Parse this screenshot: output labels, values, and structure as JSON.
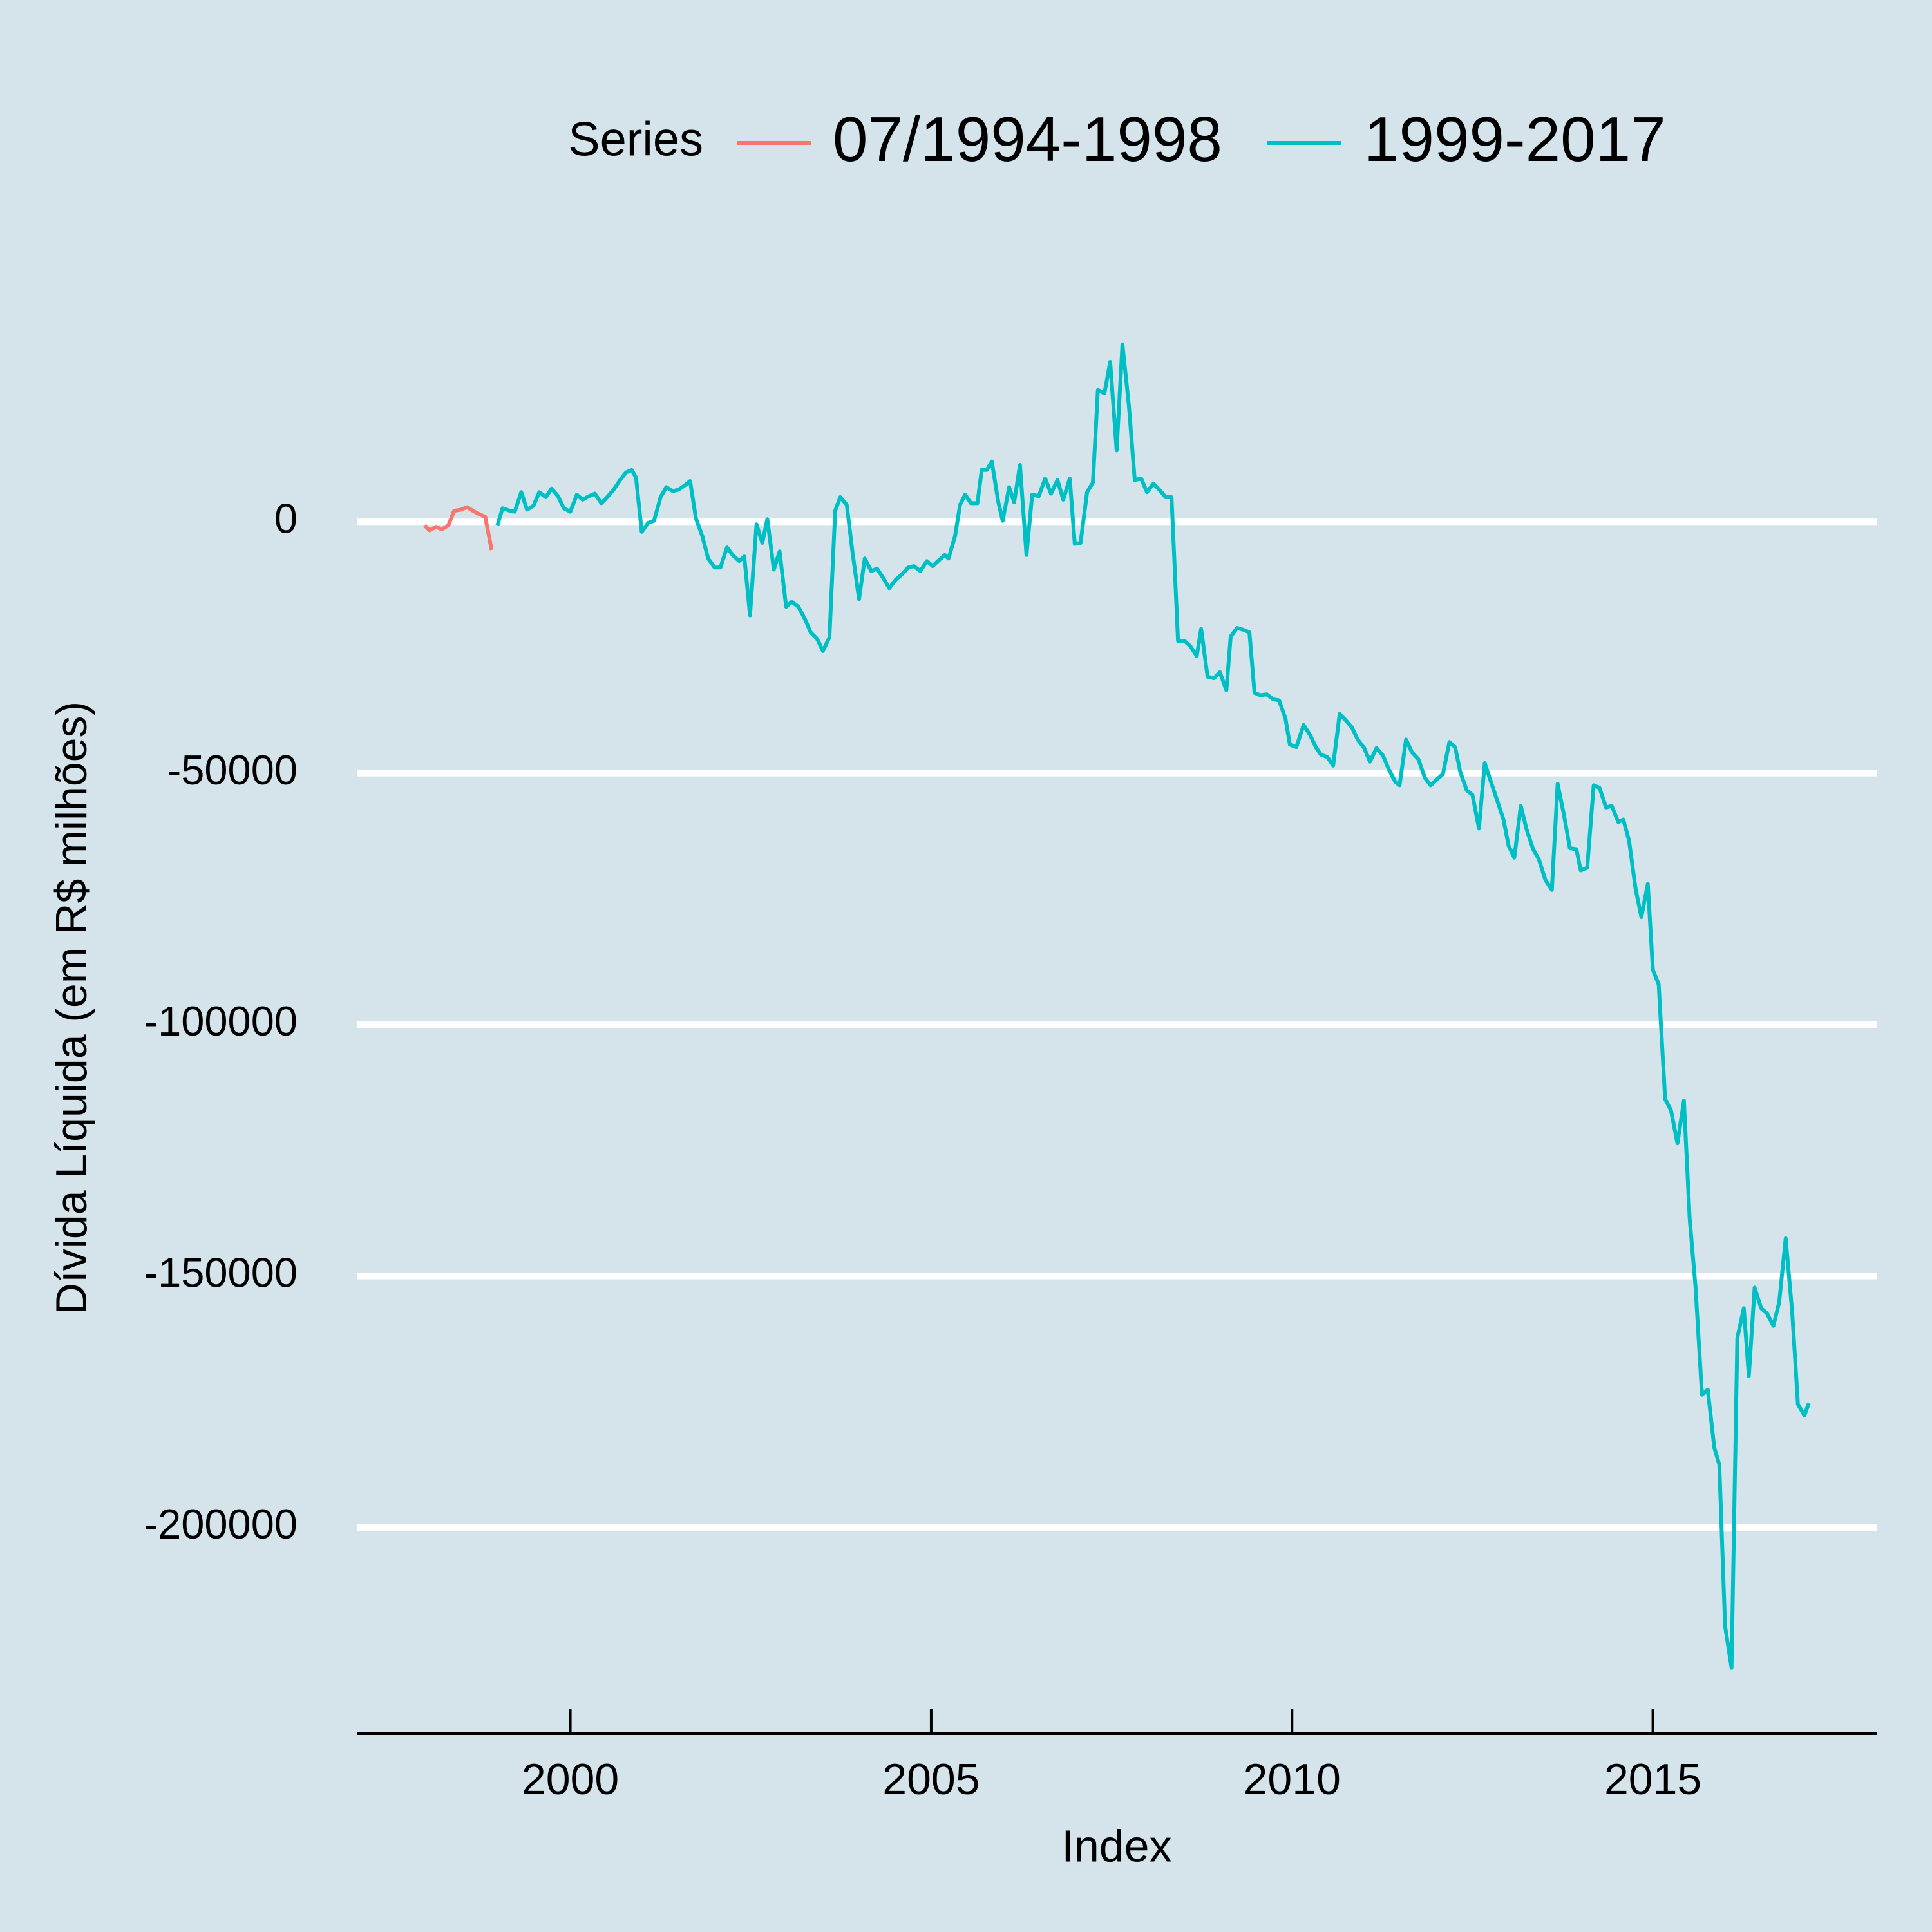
{
  "chart_data": {
    "type": "line",
    "ylabel": "Dívida Líquida (em R$ milhões)",
    "xlabel": "Index",
    "legend_title": "Series",
    "legend": "top",
    "grid": true,
    "xlim": [
      1997.05,
      2018.1
    ],
    "xticks": [
      2000,
      2005,
      2010,
      2015
    ],
    "ylim": [
      -241000,
      48700
    ],
    "yticks": [
      0,
      -50000,
      -100000,
      -150000,
      -200000
    ],
    "series": [
      {
        "name": "07/1994-1998",
        "color": "#f8766d",
        "x": [
          1997.98,
          1998.05,
          1998.14,
          1998.22,
          1998.31,
          1998.39,
          1998.48,
          1998.57,
          1998.65,
          1998.74,
          1998.82,
          1998.91
        ],
        "values": [
          -700,
          -1700,
          -1000,
          -1500,
          -700,
          2200,
          2400,
          2900,
          2200,
          1500,
          1000,
          -5600
        ]
      },
      {
        "name": "1999-2017",
        "color": "#00bfc4",
        "x": [
          1998.99,
          1999.06,
          1999.16,
          1999.23,
          1999.32,
          1999.4,
          1999.49,
          1999.57,
          1999.66,
          1999.74,
          1999.83,
          1999.91,
          2000.0,
          2000.09,
          2000.17,
          2000.26,
          2000.34,
          2000.43,
          2000.51,
          2000.6,
          2000.68,
          2000.77,
          2000.85,
          2000.91,
          2000.99,
          2001.08,
          2001.16,
          2001.25,
          2001.33,
          2001.42,
          2001.5,
          2001.59,
          2001.66,
          2001.74,
          2001.83,
          2001.91,
          2002.0,
          2002.08,
          2002.17,
          2002.25,
          2002.34,
          2002.41,
          2002.49,
          2002.58,
          2002.66,
          2002.73,
          2002.82,
          2002.9,
          2002.99,
          2003.07,
          2003.16,
          2003.25,
          2003.33,
          2003.42,
          2003.5,
          2003.59,
          2003.67,
          2003.74,
          2003.83,
          2003.91,
          2004.0,
          2004.08,
          2004.17,
          2004.25,
          2004.34,
          2004.42,
          2004.51,
          2004.59,
          2004.68,
          2004.76,
          2004.85,
          2004.94,
          2005.02,
          2005.11,
          2005.19,
          2005.24,
          2005.33,
          2005.4,
          2005.47,
          2005.55,
          2005.64,
          2005.7,
          2005.77,
          2005.84,
          2005.93,
          2005.99,
          2006.08,
          2006.15,
          2006.23,
          2006.32,
          2006.4,
          2006.49,
          2006.58,
          2006.66,
          2006.75,
          2006.83,
          2006.92,
          2006.99,
          2007.07,
          2007.16,
          2007.24,
          2007.31,
          2007.4,
          2007.48,
          2007.57,
          2007.65,
          2007.74,
          2007.82,
          2007.91,
          2007.99,
          2008.08,
          2008.16,
          2008.25,
          2008.33,
          2008.42,
          2008.51,
          2008.59,
          2008.68,
          2008.74,
          2008.83,
          2008.92,
          2009.0,
          2009.09,
          2009.15,
          2009.24,
          2009.33,
          2009.41,
          2009.48,
          2009.56,
          2009.65,
          2009.74,
          2009.82,
          2009.91,
          2009.97,
          2010.06,
          2010.16,
          2010.25,
          2010.33,
          2010.4,
          2010.49,
          2010.57,
          2010.66,
          2010.74,
          2010.83,
          2010.91,
          2011.0,
          2011.08,
          2011.17,
          2011.26,
          2011.34,
          2011.43,
          2011.49,
          2011.58,
          2011.66,
          2011.75,
          2011.84,
          2011.92,
          2012.01,
          2012.09,
          2012.18,
          2012.26,
          2012.33,
          2012.42,
          2012.5,
          2012.59,
          2012.67,
          2012.76,
          2012.84,
          2012.93,
          2013.0,
          2013.08,
          2013.17,
          2013.25,
          2013.34,
          2013.42,
          2013.51,
          2013.6,
          2013.68,
          2013.77,
          2013.85,
          2013.94,
          2014.0,
          2014.09,
          2014.18,
          2014.26,
          2014.35,
          2014.43,
          2014.52,
          2014.59,
          2014.67,
          2014.76,
          2014.84,
          2014.93,
          2015.0,
          2015.08,
          2015.17,
          2015.25,
          2015.34,
          2015.43,
          2015.51,
          2015.59,
          2015.68,
          2015.76,
          2015.85,
          2015.92,
          2016.0,
          2016.09,
          2016.17,
          2016.26,
          2016.33,
          2016.41,
          2016.5,
          2016.58,
          2016.67,
          2016.75,
          2016.84,
          2016.93,
          2017.01,
          2017.1,
          2017.16
        ],
        "values": [
          -700,
          2700,
          2200,
          2000,
          5900,
          2400,
          3200,
          5900,
          4900,
          6600,
          5100,
          2700,
          2000,
          5400,
          4400,
          5100,
          5600,
          3700,
          4900,
          6400,
          8100,
          9800,
          10300,
          8800,
          -2000,
          -200,
          200,
          4900,
          6900,
          6100,
          6400,
          7300,
          8100,
          700,
          -2900,
          -7300,
          -9100,
          -9100,
          -5100,
          -6600,
          -7800,
          -6900,
          -18600,
          -500,
          -4200,
          500,
          -9500,
          -5900,
          -16900,
          -15900,
          -16900,
          -19300,
          -22000,
          -23300,
          -25700,
          -23000,
          2200,
          4900,
          3400,
          -6100,
          -15400,
          -7300,
          -9800,
          -9300,
          -11300,
          -13200,
          -11500,
          -10500,
          -9100,
          -8800,
          -9800,
          -7800,
          -8800,
          -7600,
          -6600,
          -7300,
          -2900,
          3400,
          5400,
          3700,
          3700,
          10300,
          10300,
          12000,
          3900,
          200,
          6900,
          3900,
          11300,
          -6600,
          5400,
          5100,
          8600,
          5600,
          8300,
          4400,
          8600,
          -4400,
          -4200,
          5900,
          7800,
          26200,
          25500,
          31800,
          14200,
          35300,
          23000,
          8300,
          8600,
          5900,
          7600,
          6400,
          4900,
          4900,
          -23700,
          -23700,
          -24700,
          -26700,
          -21300,
          -30800,
          -31100,
          -29900,
          -33500,
          -22800,
          -21100,
          -21500,
          -22000,
          -34000,
          -34500,
          -34300,
          -35300,
          -35500,
          -39200,
          -44300,
          -44800,
          -40400,
          -42400,
          -44800,
          -46300,
          -46800,
          -48500,
          -38200,
          -39400,
          -40900,
          -43300,
          -45000,
          -47700,
          -45000,
          -46500,
          -49200,
          -51700,
          -52400,
          -43300,
          -45800,
          -47200,
          -50900,
          -52400,
          -51200,
          -50200,
          -43800,
          -44800,
          -49700,
          -53400,
          -54300,
          -61000,
          -48000,
          -51900,
          -55300,
          -59200,
          -64400,
          -66800,
          -56500,
          -61200,
          -65100,
          -67100,
          -71200,
          -73200,
          -52100,
          -58500,
          -64900,
          -65100,
          -69300,
          -68800,
          -52400,
          -52900,
          -56800,
          -56500,
          -59700,
          -59200,
          -63400,
          -73000,
          -78600,
          -72000,
          -89100,
          -92000,
          -114800,
          -117000,
          -123600,
          -115100,
          -138600,
          -152000,
          -173600,
          -172600,
          -184100,
          -187500,
          -219600,
          -227900,
          -162300,
          -156400,
          -169900,
          -152300,
          -156400,
          -157400,
          -159900,
          -155200,
          -142500,
          -157200,
          -175500,
          -177700,
          -175300
        ]
      }
    ]
  }
}
